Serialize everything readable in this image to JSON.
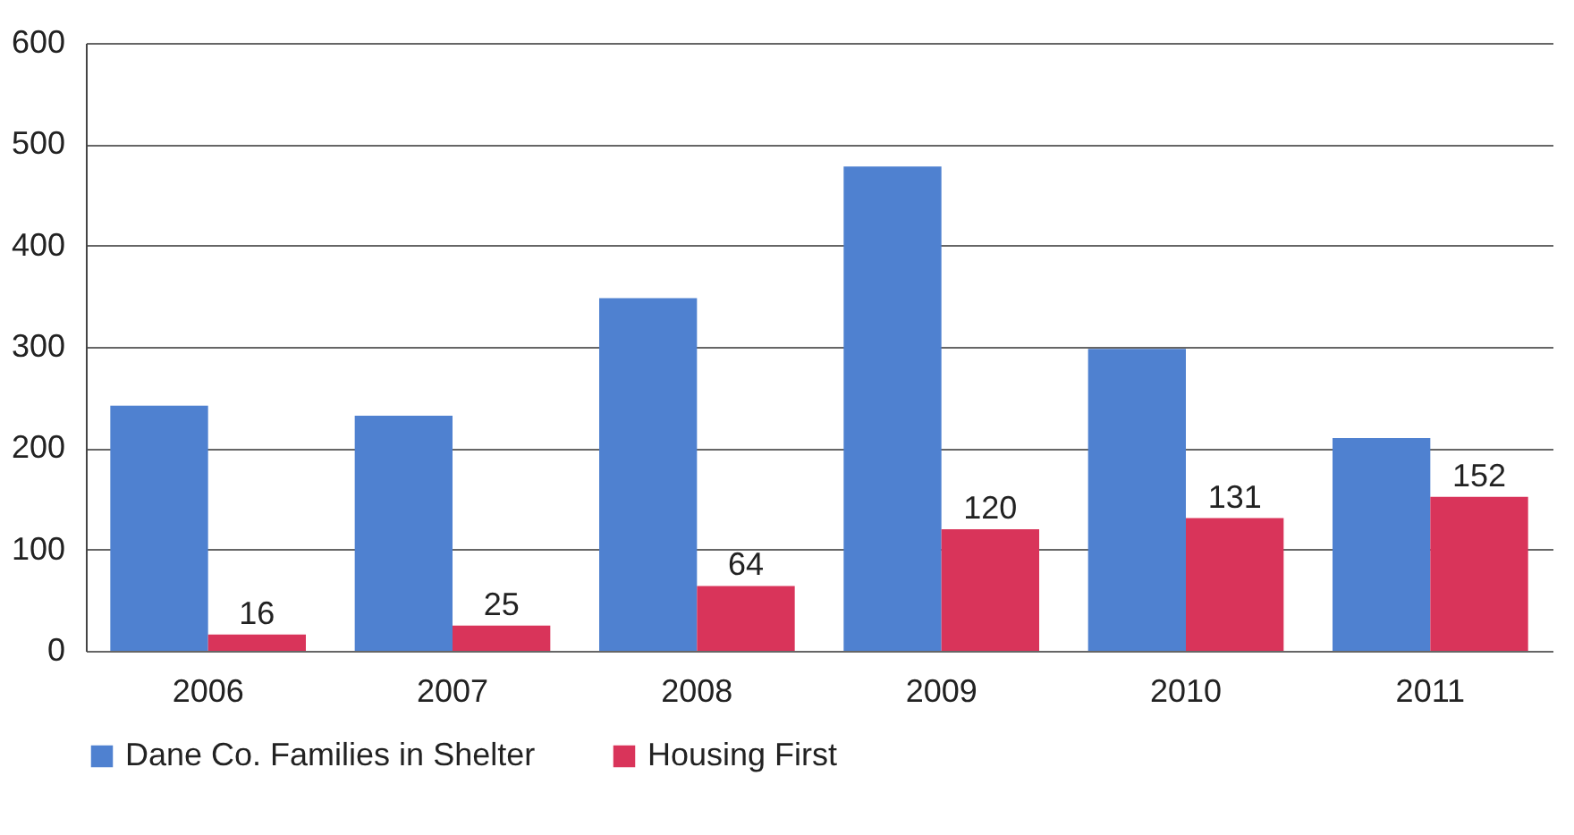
{
  "chart_data": {
    "type": "bar",
    "categories": [
      "2006",
      "2007",
      "2008",
      "2009",
      "2010",
      "2011"
    ],
    "series": [
      {
        "name": "Dane Co. Families in Shelter",
        "color": "#4f81d0",
        "values": [
          242,
          232,
          348,
          478,
          298,
          210
        ]
      },
      {
        "name": "Housing First",
        "color": "#d9345a",
        "values": [
          16,
          25,
          64,
          120,
          131,
          152
        ],
        "value_labels": [
          "16",
          "25",
          "64",
          "120",
          "131",
          "152"
        ]
      }
    ],
    "ylim": [
      0,
      600
    ],
    "yticks": [
      0,
      100,
      200,
      300,
      400,
      500,
      600
    ],
    "grid": "y",
    "legend": "bottom"
  }
}
